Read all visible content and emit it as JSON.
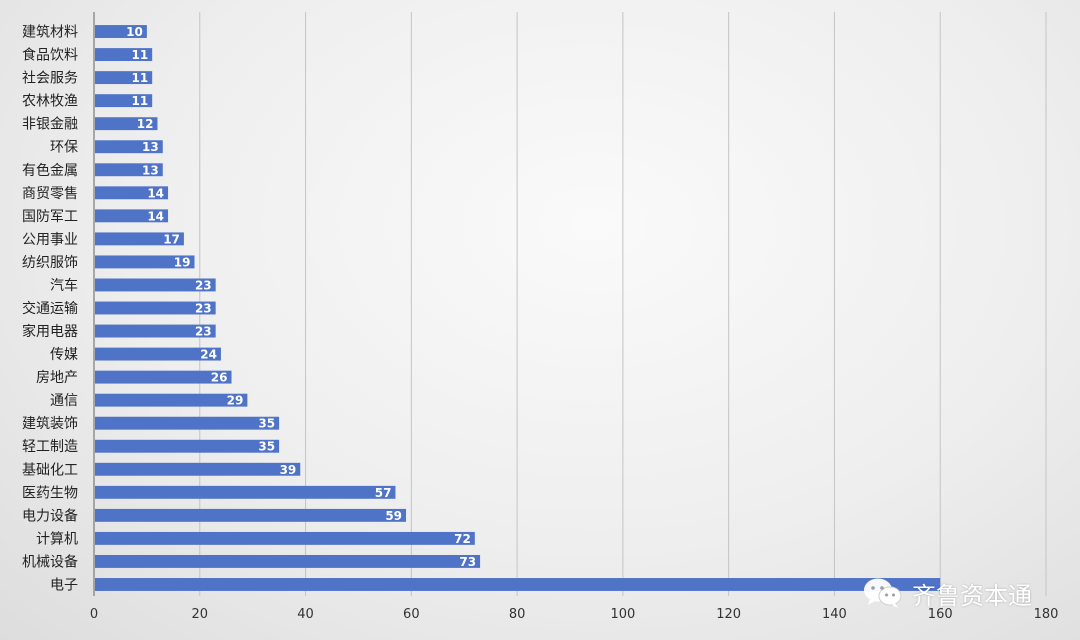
{
  "chart_data": {
    "type": "bar",
    "orientation": "horizontal",
    "categories": [
      "建筑材料",
      "食品饮料",
      "社会服务",
      "农林牧渔",
      "非银金融",
      "环保",
      "有色金属",
      "商贸零售",
      "国防军工",
      "公用事业",
      "纺织服饰",
      "汽车",
      "交通运输",
      "家用电器",
      "传媒",
      "房地产",
      "通信",
      "建筑装饰",
      "轻工制造",
      "基础化工",
      "医药生物",
      "电力设备",
      "计算机",
      "机械设备",
      "电子"
    ],
    "values": [
      10,
      11,
      11,
      11,
      12,
      13,
      13,
      14,
      14,
      17,
      19,
      23,
      23,
      23,
      24,
      26,
      29,
      35,
      35,
      39,
      57,
      59,
      72,
      73,
      160
    ],
    "value_labels_shown": [
      true,
      true,
      true,
      true,
      true,
      true,
      true,
      true,
      true,
      true,
      true,
      true,
      true,
      true,
      true,
      true,
      true,
      true,
      true,
      true,
      true,
      true,
      true,
      true,
      false
    ],
    "xlim": [
      0,
      180
    ],
    "xticks": [
      0,
      20,
      40,
      60,
      80,
      100,
      120,
      140,
      160,
      180
    ],
    "grid": "vertical",
    "bar_color": "#4f73c7",
    "title": "",
    "xlabel": "",
    "ylabel": ""
  },
  "watermark": {
    "text": "齐鲁资本通",
    "icon": "wechat-icon"
  }
}
